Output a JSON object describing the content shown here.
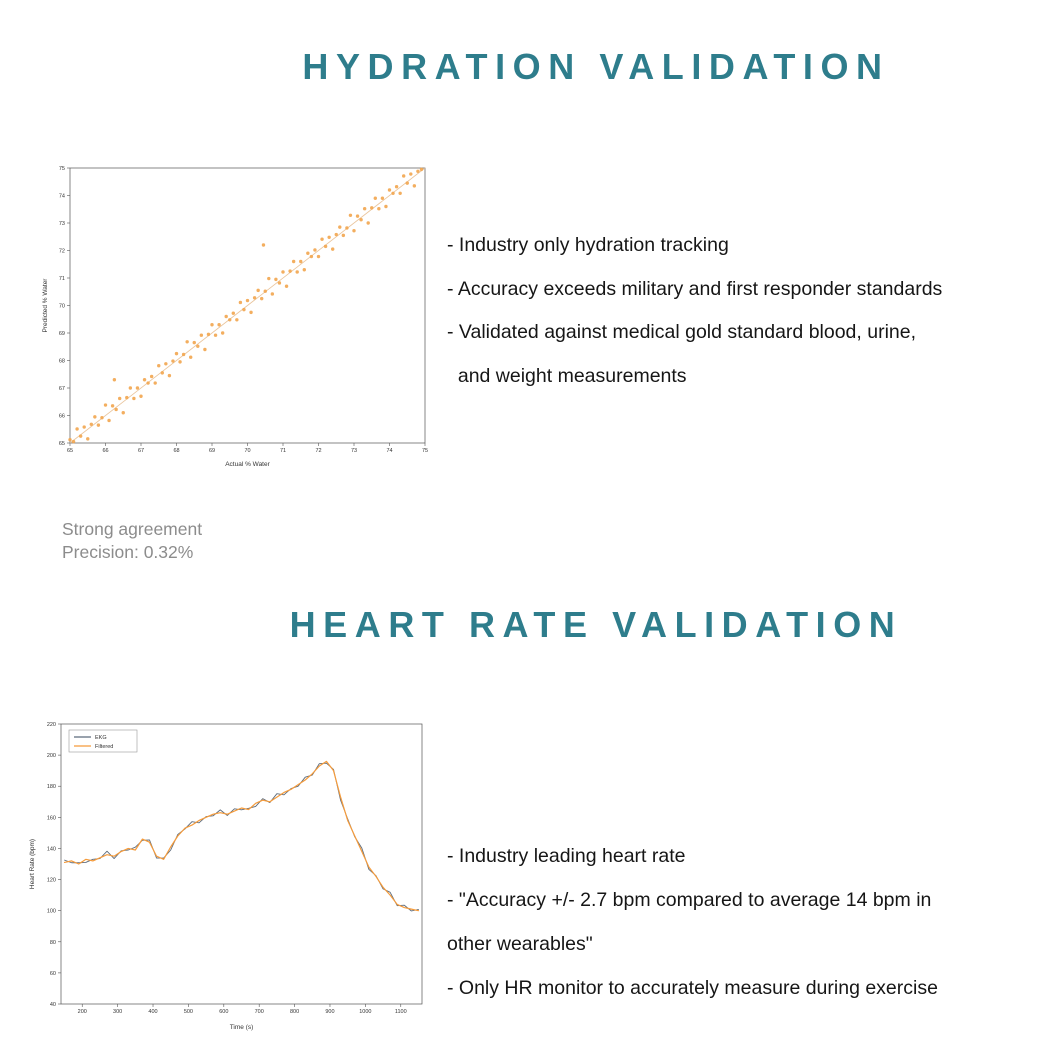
{
  "colors": {
    "heading": "#2e7d8c",
    "scatter_point": "#f2a54e",
    "trend_line": "#e7bd8f",
    "ekg_line": "#5c6b7c",
    "filtered_line": "#f59b3b",
    "caption_text": "#8c8c8c"
  },
  "hydration": {
    "title": "HYDRATION VALIDATION",
    "bullets": [
      "- Industry only hydration tracking",
      "- Accuracy exceeds military and first responder standards",
      "- Validated against medical gold standard blood, urine,",
      "  and weight measurements"
    ],
    "caption": {
      "line1": "Strong agreement",
      "line2": "Precision: 0.32%"
    }
  },
  "heart_rate": {
    "title": "HEART RATE VALIDATION",
    "bullets": [
      "- Industry leading heart rate",
      "- \"Accuracy +/- 2.7 bpm compared to average 14 bpm in",
      "other wearables\"",
      "- Only HR monitor to accurately measure during exercise"
    ]
  },
  "chart_data": [
    {
      "type": "scatter",
      "title": "",
      "xlabel": "Actual % Water",
      "ylabel": "Predicted % Water",
      "xlim": [
        65,
        75
      ],
      "ylim": [
        65,
        75
      ],
      "xticks": [
        65,
        66,
        67,
        68,
        69,
        70,
        71,
        72,
        73,
        74,
        75
      ],
      "yticks": [
        65,
        66,
        67,
        68,
        69,
        70,
        71,
        72,
        73,
        74,
        75
      ],
      "tick_font": 5.5,
      "identity_line": true,
      "point_color": "#f2a54e",
      "line_color": "#e7bd8f",
      "grid": false,
      "points": [
        [
          65,
          65.12
        ],
        [
          65.1,
          65.05
        ],
        [
          65.2,
          65.51
        ],
        [
          65.3,
          65.25
        ],
        [
          65.4,
          65.58
        ],
        [
          65.5,
          65.15
        ],
        [
          65.6,
          65.68
        ],
        [
          65.7,
          65.95
        ],
        [
          65.8,
          65.65
        ],
        [
          65.9,
          65.92
        ],
        [
          66,
          66.38
        ],
        [
          66.1,
          65.82
        ],
        [
          66.2,
          66.35
        ],
        [
          66.3,
          66.22
        ],
        [
          66.4,
          66.62
        ],
        [
          66.5,
          66.1
        ],
        [
          66.6,
          66.65
        ],
        [
          66.7,
          67
        ],
        [
          66.8,
          66.62
        ],
        [
          66.9,
          67
        ],
        [
          67,
          66.7
        ],
        [
          67.1,
          67.3
        ],
        [
          67.2,
          67.18
        ],
        [
          67.3,
          67.42
        ],
        [
          67.4,
          67.18
        ],
        [
          67.5,
          67.81
        ],
        [
          67.6,
          67.55
        ],
        [
          67.7,
          67.88
        ],
        [
          67.8,
          67.45
        ],
        [
          67.9,
          67.98
        ],
        [
          68,
          68.25
        ],
        [
          68.1,
          67.95
        ],
        [
          68.2,
          68.22
        ],
        [
          68.3,
          68.68
        ],
        [
          68.4,
          68.12
        ],
        [
          68.5,
          68.65
        ],
        [
          68.6,
          68.52
        ],
        [
          68.7,
          68.92
        ],
        [
          68.8,
          68.4
        ],
        [
          68.9,
          68.95
        ],
        [
          69,
          69.3
        ],
        [
          69.1,
          68.92
        ],
        [
          69.2,
          69.3
        ],
        [
          69.3,
          69
        ],
        [
          69.4,
          69.6
        ],
        [
          69.5,
          69.48
        ],
        [
          69.6,
          69.72
        ],
        [
          69.7,
          69.48
        ],
        [
          69.8,
          70.11
        ],
        [
          69.9,
          69.85
        ],
        [
          70,
          70.18
        ],
        [
          70.1,
          69.75
        ],
        [
          70.2,
          70.28
        ],
        [
          70.3,
          70.55
        ],
        [
          70.4,
          70.25
        ],
        [
          70.5,
          70.52
        ],
        [
          70.6,
          70.98
        ],
        [
          70.7,
          70.42
        ],
        [
          70.8,
          70.95
        ],
        [
          70.9,
          70.82
        ],
        [
          71,
          71.22
        ],
        [
          71.1,
          70.7
        ],
        [
          71.2,
          71.25
        ],
        [
          71.3,
          71.6
        ],
        [
          71.4,
          71.22
        ],
        [
          71.5,
          71.6
        ],
        [
          71.6,
          71.3
        ],
        [
          71.7,
          71.9
        ],
        [
          71.8,
          71.78
        ],
        [
          71.9,
          72.02
        ],
        [
          72,
          71.78
        ],
        [
          72.1,
          72.41
        ],
        [
          72.2,
          72.15
        ],
        [
          72.3,
          72.48
        ],
        [
          72.4,
          72.05
        ],
        [
          72.5,
          72.58
        ],
        [
          72.6,
          72.85
        ],
        [
          72.7,
          72.55
        ],
        [
          72.8,
          72.82
        ],
        [
          72.9,
          73.28
        ],
        [
          73,
          72.72
        ],
        [
          73.1,
          73.25
        ],
        [
          73.2,
          73.12
        ],
        [
          73.3,
          73.52
        ],
        [
          73.4,
          73
        ],
        [
          73.5,
          73.55
        ],
        [
          73.6,
          73.9
        ],
        [
          73.7,
          73.52
        ],
        [
          73.8,
          73.9
        ],
        [
          73.9,
          73.6
        ],
        [
          74,
          74.2
        ],
        [
          74.1,
          74.08
        ],
        [
          74.2,
          74.32
        ],
        [
          74.3,
          74.08
        ],
        [
          74.4,
          74.71
        ],
        [
          74.5,
          74.45
        ],
        [
          74.6,
          74.78
        ],
        [
          74.7,
          74.35
        ],
        [
          74.8,
          74.88
        ],
        [
          74.9,
          74.95
        ],
        [
          66.25,
          67.3
        ],
        [
          70.45,
          72.2
        ]
      ]
    },
    {
      "type": "line",
      "title": "",
      "xlabel": "Time (s)",
      "ylabel": "Heart Rate (bpm)",
      "xlim": [
        140,
        1160
      ],
      "ylim": [
        40,
        220
      ],
      "xticks": [
        200,
        300,
        400,
        500,
        600,
        700,
        800,
        900,
        1000,
        1100
      ],
      "yticks": [
        40,
        60,
        80,
        100,
        120,
        140,
        160,
        180,
        200,
        220
      ],
      "tick_font": 5.5,
      "grid": false,
      "legend": [
        "EKG",
        "Filtered"
      ],
      "legend_position": "upper-left",
      "x": [
        150,
        170,
        190,
        210,
        230,
        250,
        270,
        290,
        310,
        330,
        350,
        370,
        390,
        410,
        430,
        450,
        470,
        490,
        510,
        530,
        550,
        570,
        590,
        610,
        630,
        650,
        670,
        690,
        710,
        730,
        750,
        770,
        790,
        810,
        830,
        850,
        870,
        890,
        910,
        930,
        950,
        970,
        990,
        1010,
        1030,
        1050,
        1070,
        1090,
        1110,
        1130,
        1150
      ],
      "series": [
        {
          "name": "EKG",
          "color": "#5c6b7c",
          "values": [
            132.5,
            130.8,
            130.8,
            131,
            133,
            133.5,
            138.2,
            133.5,
            138.5,
            139,
            140.8,
            145.2,
            145.5,
            133.8,
            133.8,
            139,
            149,
            152.5,
            157.2,
            156.5,
            160.5,
            161,
            164.8,
            161.2,
            165.5,
            164.8,
            165.8,
            167,
            172,
            169.5,
            175.2,
            174.5,
            178.5,
            180,
            185.8,
            187.2,
            194.5,
            194.8,
            190.8,
            171,
            159,
            147.5,
            140.2,
            126.5,
            122.5,
            114,
            111.8,
            103.2,
            103.5,
            99.8,
            100.8
          ]
        },
        {
          "name": "Filtered",
          "color": "#f59b3b",
          "values": [
            131,
            132,
            130,
            133,
            132,
            134,
            136,
            135,
            138,
            140,
            139,
            146,
            144,
            135,
            133,
            141,
            148,
            153,
            155,
            158,
            160,
            162,
            163,
            162,
            164,
            166,
            165,
            169,
            171,
            170,
            173,
            176,
            178,
            181,
            184,
            188,
            193,
            196,
            190,
            173,
            158,
            148,
            138,
            128,
            122,
            115,
            110,
            104,
            102,
            101,
            100
          ]
        }
      ]
    }
  ]
}
